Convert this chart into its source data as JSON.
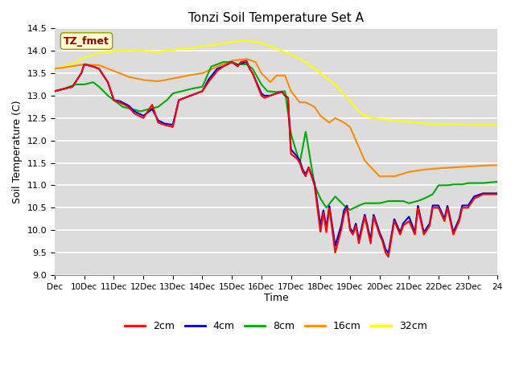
{
  "title": "Tonzi Soil Temperature Set A",
  "xlabel": "Time",
  "ylabel": "Soil Temperature (C)",
  "ylim": [
    9.0,
    14.5
  ],
  "xlim": [
    0,
    15
  ],
  "x_tick_labels": [
    "Dec",
    "10Dec",
    "11Dec",
    "12Dec",
    "13Dec",
    "14Dec",
    "15Dec",
    "16Dec",
    "17Dec",
    "18Dec",
    "19Dec",
    "20Dec",
    "21Dec",
    "22Dec",
    "23Dec",
    "24"
  ],
  "annotation_text": "TZ_fmet",
  "annotation_color": "#8B0000",
  "annotation_bg": "#FFFFCC",
  "bg_color": "#DCDCDC",
  "line_colors": {
    "2cm": "#FF0000",
    "4cm": "#0000CC",
    "8cm": "#00AA00",
    "16cm": "#FF8C00",
    "32cm": "#FFFF00"
  },
  "line_labels": [
    "2cm",
    "4cm",
    "8cm",
    "16cm",
    "32cm"
  ],
  "legend_line_colors": [
    "#FF0000",
    "#0000CC",
    "#00AA00",
    "#FF8C00",
    "#FFFF00"
  ],
  "2cm_x": [
    0,
    0.3,
    0.6,
    0.9,
    1.0,
    1.3,
    1.5,
    1.8,
    2.0,
    2.2,
    2.5,
    2.7,
    3.0,
    3.3,
    3.5,
    3.7,
    4.0,
    4.2,
    4.4,
    4.6,
    4.8,
    5.0,
    5.2,
    5.5,
    5.7,
    6.0,
    6.1,
    6.2,
    6.3,
    6.5,
    6.6,
    6.7,
    7.0,
    7.1,
    7.3,
    7.5,
    7.7,
    7.8,
    7.9,
    8.0,
    8.2,
    8.3,
    8.4,
    8.5,
    8.6,
    8.8,
    9.0,
    9.1,
    9.2,
    9.3,
    9.4,
    9.5,
    9.7,
    9.8,
    9.9,
    10.0,
    10.1,
    10.2,
    10.3,
    10.5,
    10.7,
    10.8,
    11.0,
    11.1,
    11.2,
    11.3,
    11.5,
    11.7,
    11.8,
    12.0,
    12.2,
    12.3,
    12.5,
    12.7,
    12.8,
    13.0,
    13.2,
    13.3,
    13.5,
    13.7,
    13.8,
    14.0,
    14.2,
    14.5,
    15.0
  ],
  "2cm_y": [
    13.1,
    13.15,
    13.2,
    13.5,
    13.7,
    13.65,
    13.6,
    13.3,
    12.9,
    12.85,
    12.75,
    12.6,
    12.5,
    12.8,
    12.4,
    12.35,
    12.3,
    12.9,
    12.95,
    13.0,
    13.05,
    13.1,
    13.3,
    13.55,
    13.65,
    13.75,
    13.7,
    13.65,
    13.75,
    13.78,
    13.6,
    13.5,
    13.0,
    12.95,
    13.0,
    13.05,
    13.08,
    13.0,
    12.95,
    11.7,
    11.6,
    11.5,
    11.3,
    11.2,
    11.4,
    11.0,
    9.95,
    10.4,
    9.95,
    10.5,
    10.0,
    9.5,
    10.0,
    10.35,
    10.5,
    10.0,
    9.9,
    10.1,
    9.7,
    10.3,
    9.7,
    10.3,
    9.9,
    9.75,
    9.5,
    9.4,
    10.2,
    9.9,
    10.1,
    10.2,
    9.9,
    10.5,
    9.9,
    10.1,
    10.5,
    10.5,
    10.2,
    10.5,
    9.9,
    10.2,
    10.5,
    10.5,
    10.7,
    10.8,
    10.8
  ],
  "4cm_x": [
    0,
    0.3,
    0.6,
    0.9,
    1.0,
    1.3,
    1.5,
    1.8,
    2.0,
    2.2,
    2.5,
    2.7,
    3.0,
    3.3,
    3.5,
    3.7,
    4.0,
    4.2,
    4.4,
    4.6,
    4.8,
    5.0,
    5.2,
    5.5,
    5.7,
    6.0,
    6.1,
    6.2,
    6.3,
    6.5,
    6.6,
    6.7,
    7.0,
    7.1,
    7.3,
    7.5,
    7.7,
    7.8,
    7.9,
    8.0,
    8.2,
    8.3,
    8.4,
    8.5,
    8.6,
    8.8,
    9.0,
    9.1,
    9.2,
    9.3,
    9.4,
    9.5,
    9.7,
    9.8,
    9.9,
    10.0,
    10.1,
    10.2,
    10.3,
    10.5,
    10.7,
    10.8,
    11.0,
    11.1,
    11.2,
    11.3,
    11.5,
    11.7,
    11.8,
    12.0,
    12.2,
    12.3,
    12.5,
    12.7,
    12.8,
    13.0,
    13.2,
    13.3,
    13.5,
    13.7,
    13.8,
    14.0,
    14.2,
    14.5,
    15.0
  ],
  "4cm_y": [
    13.1,
    13.15,
    13.2,
    13.5,
    13.7,
    13.65,
    13.6,
    13.3,
    12.9,
    12.88,
    12.78,
    12.65,
    12.55,
    12.7,
    12.45,
    12.38,
    12.35,
    12.9,
    12.95,
    13.0,
    13.05,
    13.1,
    13.35,
    13.6,
    13.65,
    13.75,
    13.7,
    13.68,
    13.72,
    13.75,
    13.6,
    13.5,
    13.05,
    13.0,
    13.0,
    13.05,
    13.08,
    13.0,
    12.96,
    11.8,
    11.65,
    11.55,
    11.35,
    11.25,
    11.4,
    11.05,
    10.1,
    10.45,
    10.05,
    10.55,
    10.1,
    9.65,
    10.1,
    10.45,
    10.55,
    10.05,
    9.95,
    10.15,
    9.78,
    10.35,
    9.78,
    10.35,
    9.95,
    9.8,
    9.58,
    9.48,
    10.25,
    9.95,
    10.15,
    10.3,
    9.95,
    10.55,
    9.95,
    10.15,
    10.55,
    10.55,
    10.25,
    10.55,
    9.95,
    10.25,
    10.55,
    10.55,
    10.75,
    10.82,
    10.82
  ],
  "8cm_x": [
    0,
    0.3,
    0.7,
    1.0,
    1.3,
    1.5,
    1.8,
    2.0,
    2.3,
    2.6,
    2.9,
    3.2,
    3.5,
    3.8,
    4.0,
    4.3,
    4.6,
    5.0,
    5.3,
    5.7,
    6.0,
    6.2,
    6.5,
    6.7,
    7.0,
    7.2,
    7.5,
    7.8,
    8.0,
    8.3,
    8.5,
    8.8,
    9.0,
    9.2,
    9.5,
    9.8,
    10.0,
    10.3,
    10.5,
    10.8,
    11.0,
    11.3,
    11.5,
    11.8,
    12.0,
    12.3,
    12.5,
    12.8,
    13.0,
    13.3,
    13.5,
    13.8,
    14.0,
    14.5,
    15.0
  ],
  "8cm_y": [
    13.1,
    13.15,
    13.25,
    13.25,
    13.3,
    13.2,
    13.0,
    12.9,
    12.75,
    12.7,
    12.65,
    12.7,
    12.75,
    12.9,
    13.05,
    13.1,
    13.15,
    13.2,
    13.65,
    13.75,
    13.75,
    13.7,
    13.7,
    13.6,
    13.25,
    13.1,
    13.08,
    13.1,
    12.15,
    11.5,
    12.2,
    11.0,
    10.7,
    10.5,
    10.75,
    10.55,
    10.45,
    10.55,
    10.6,
    10.6,
    10.6,
    10.65,
    10.65,
    10.65,
    10.6,
    10.65,
    10.7,
    10.8,
    11.0,
    11.0,
    11.02,
    11.02,
    11.05,
    11.05,
    11.08
  ],
  "16cm_x": [
    0,
    0.5,
    1.0,
    1.5,
    2.0,
    2.5,
    3.0,
    3.5,
    4.0,
    4.5,
    5.0,
    5.5,
    6.0,
    6.3,
    6.5,
    6.8,
    7.0,
    7.3,
    7.5,
    7.8,
    8.0,
    8.3,
    8.5,
    8.8,
    9.0,
    9.3,
    9.5,
    9.8,
    10.0,
    10.5,
    11.0,
    11.5,
    12.0,
    12.5,
    13.0,
    13.5,
    14.0,
    14.5,
    15.0
  ],
  "16cm_y": [
    13.6,
    13.65,
    13.7,
    13.68,
    13.55,
    13.42,
    13.35,
    13.32,
    13.38,
    13.45,
    13.5,
    13.65,
    13.78,
    13.8,
    13.82,
    13.75,
    13.5,
    13.3,
    13.45,
    13.45,
    13.1,
    12.85,
    12.85,
    12.75,
    12.55,
    12.4,
    12.5,
    12.4,
    12.3,
    11.55,
    11.2,
    11.2,
    11.3,
    11.35,
    11.38,
    11.4,
    11.42,
    11.44,
    11.45
  ],
  "32cm_x": [
    0,
    0.5,
    1.0,
    1.5,
    2.0,
    2.5,
    3.0,
    3.5,
    4.0,
    4.3,
    4.5,
    4.8,
    5.0,
    5.3,
    5.5,
    5.8,
    6.0,
    6.3,
    6.5,
    6.8,
    7.0,
    7.5,
    8.0,
    8.5,
    9.0,
    9.5,
    10.0,
    10.3,
    10.5,
    10.8,
    11.0,
    11.3,
    11.5,
    11.8,
    12.0,
    12.3,
    12.5,
    12.8,
    13.0,
    13.3,
    13.5,
    13.8,
    14.0,
    14.3,
    14.5,
    14.8,
    15.0
  ],
  "32cm_y": [
    13.6,
    13.68,
    13.85,
    13.95,
    14.0,
    14.02,
    14.0,
    13.98,
    14.02,
    14.05,
    14.05,
    14.08,
    14.1,
    14.12,
    14.15,
    14.17,
    14.2,
    14.22,
    14.22,
    14.2,
    14.18,
    14.05,
    13.92,
    13.75,
    13.5,
    13.25,
    12.88,
    12.65,
    12.55,
    12.5,
    12.48,
    12.45,
    12.43,
    12.42,
    12.42,
    12.4,
    12.38,
    12.37,
    12.37,
    12.36,
    12.36,
    12.36,
    12.35,
    12.35,
    12.35,
    12.35,
    12.35
  ]
}
